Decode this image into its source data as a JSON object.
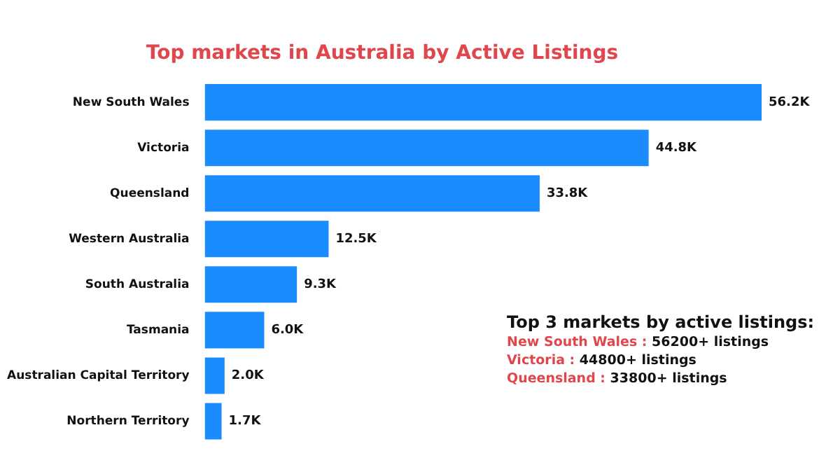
{
  "chart_data": {
    "type": "bar",
    "orientation": "horizontal",
    "title": "Top markets in Australia by Active Listings",
    "categories": [
      "New South Wales",
      "Victoria",
      "Queensland",
      "Western Australia",
      "South Australia",
      "Tasmania",
      "Australian Capital Territory",
      "Northern Territory"
    ],
    "series": [
      {
        "color": "#1a8cff",
        "values": [
          56.2,
          44.8,
          33.8,
          12.5,
          9.3,
          6.0,
          2.0,
          1.7
        ],
        "value_labels": [
          "56.2K",
          "44.8K",
          "33.8K",
          "12.5K",
          "9.3K",
          "6.0K",
          "2.0K",
          "1.7K"
        ]
      }
    ],
    "legend": false,
    "annotations": [
      "Top 3 markets by active listings:",
      "New South Wales : 56200+ listings",
      "Victoria : 44800+ listings",
      "Queensland : 33800+ listings"
    ]
  }
}
